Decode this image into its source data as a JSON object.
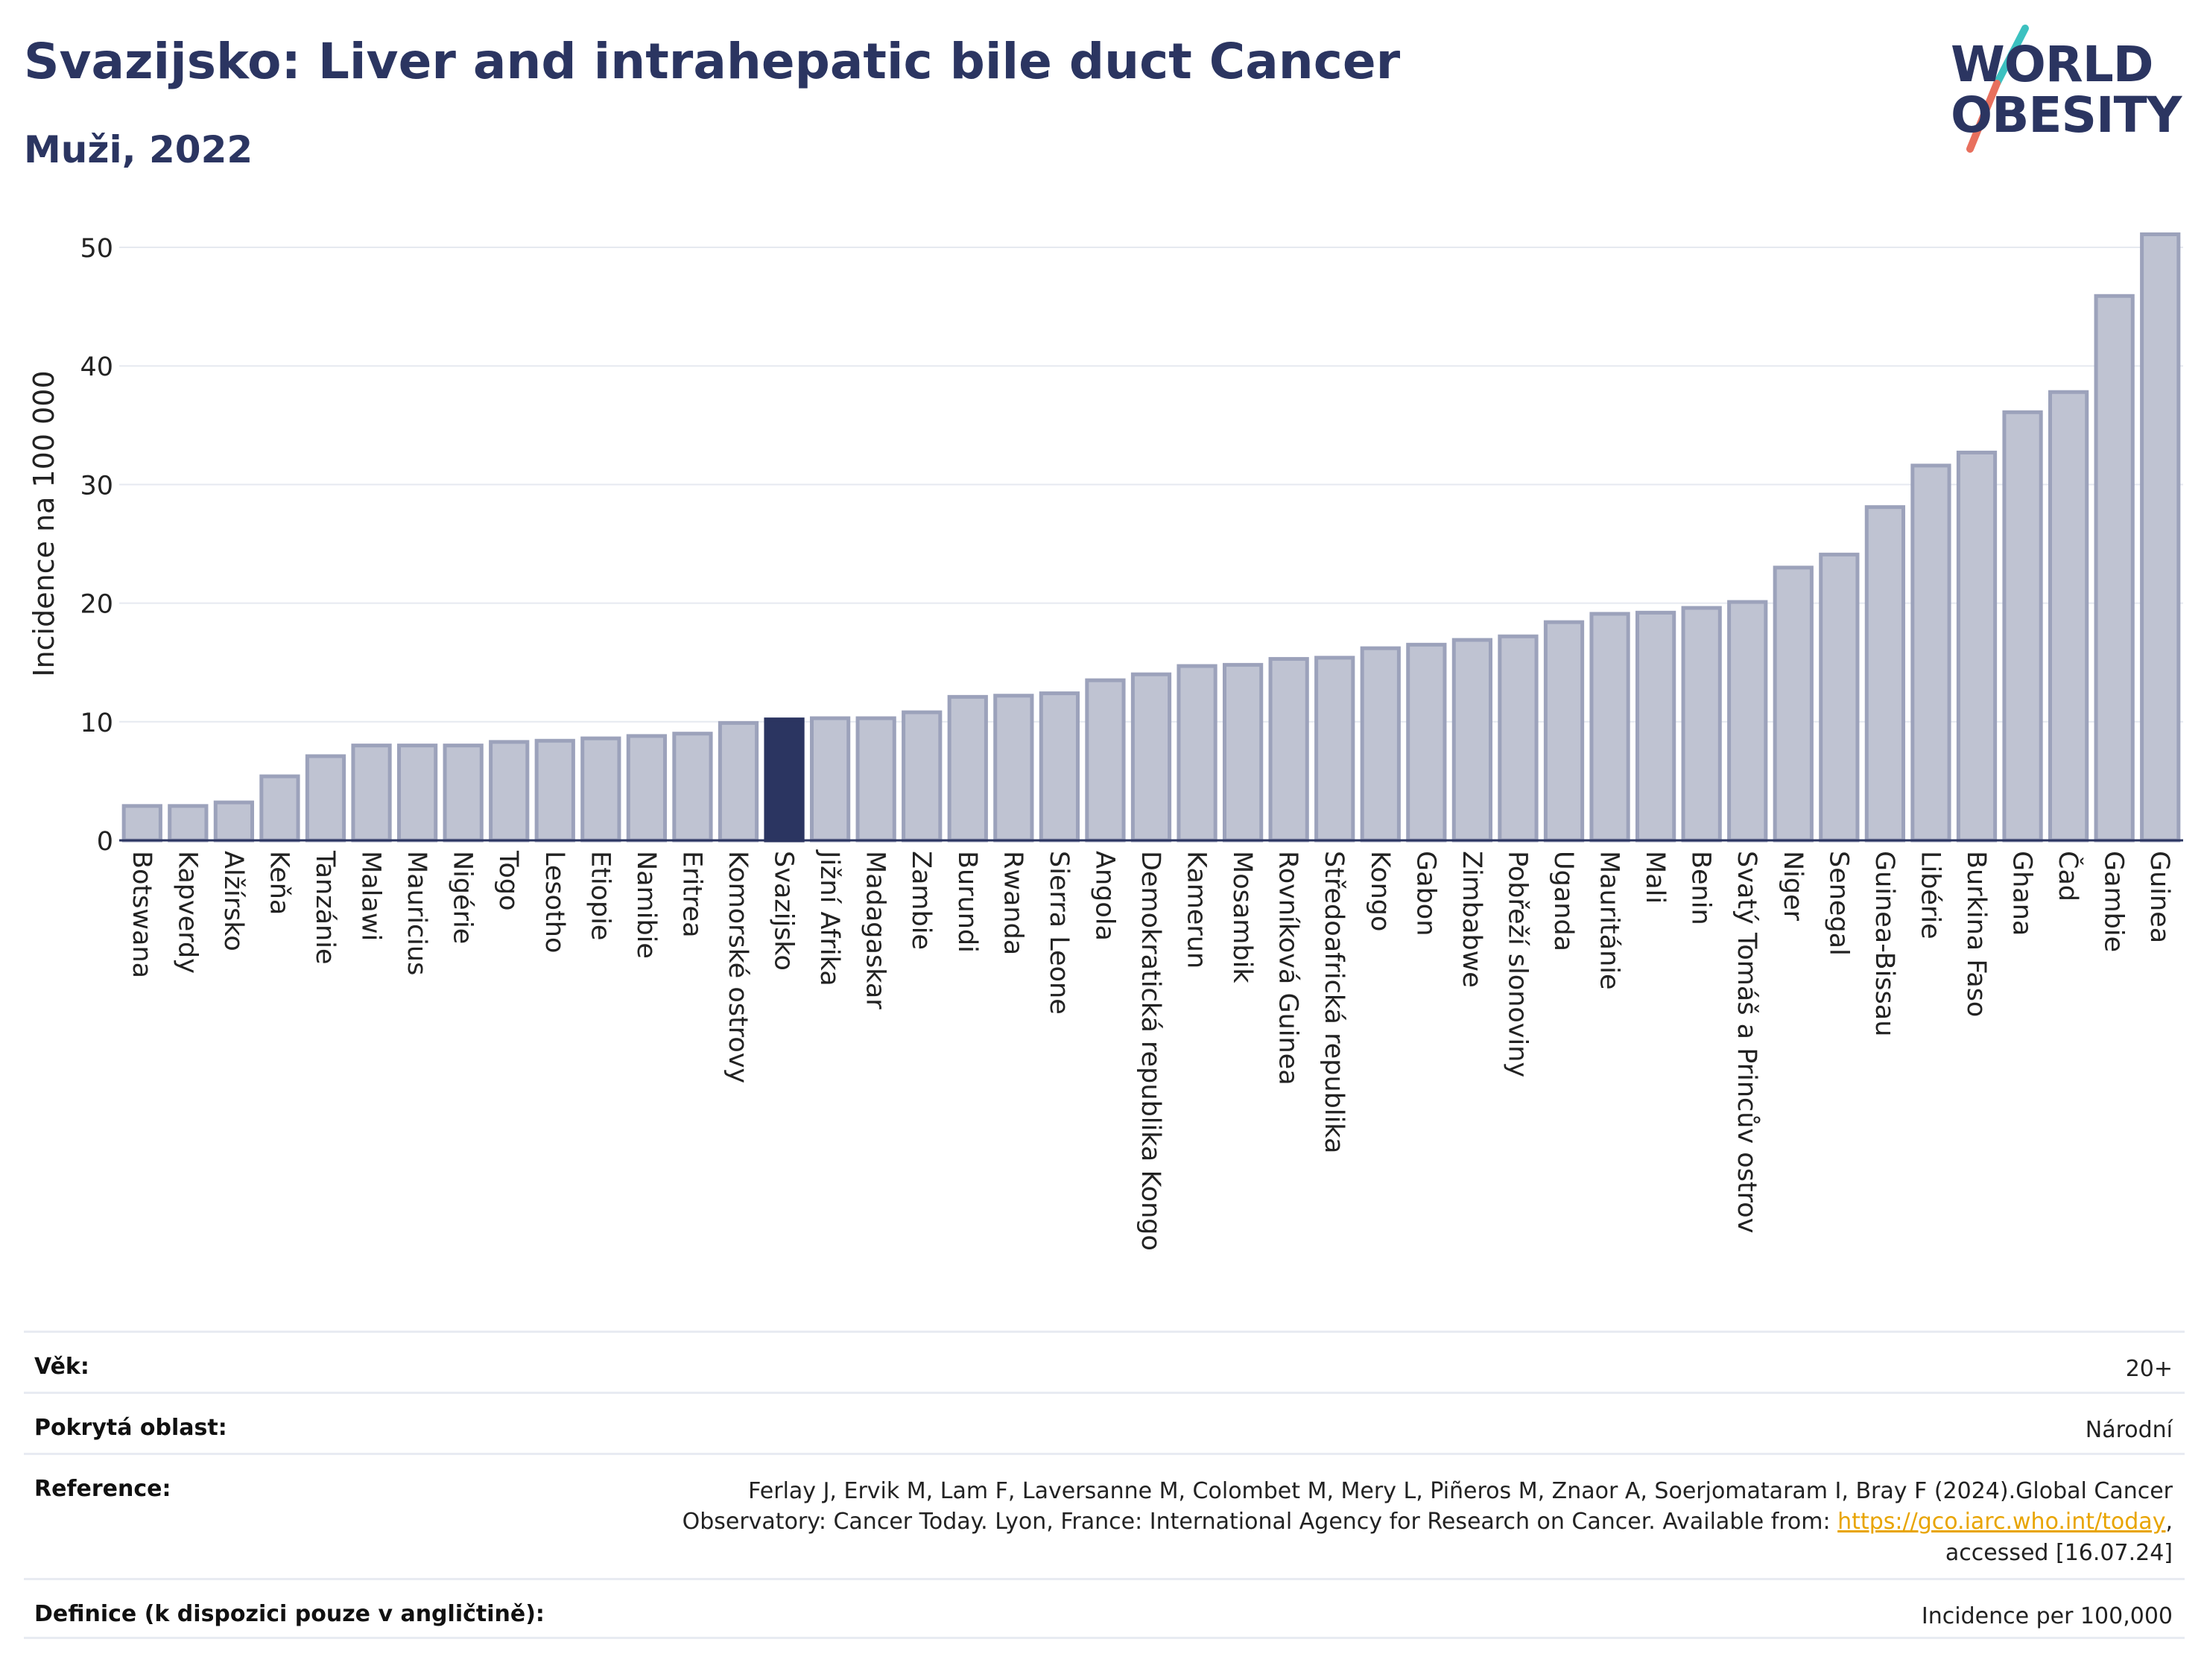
{
  "header": {
    "title": "Svazijsko: Liver and intrahepatic bile duct Cancer",
    "subtitle": "Muži, 2022"
  },
  "logo": {
    "line1": "WORLD",
    "line2": "OBESITY"
  },
  "colors": {
    "bar_fill": "#bfc3d2",
    "bar_stroke": "#9ca2bb",
    "highlight": "#2b3561",
    "text": "#2b3561",
    "grid": "#e6e9f0",
    "logo_teal": "#3cc1c0",
    "logo_coral": "#e8705e"
  },
  "chart_data": {
    "type": "bar",
    "ylabel": "Incidence na 100 000",
    "ylim": [
      0,
      53
    ],
    "yticks": [
      0,
      10,
      20,
      30,
      40,
      50
    ],
    "grid": true,
    "highlight": "Svazijsko",
    "categories": [
      "Botswana",
      "Kapverdy",
      "Alžírsko",
      "Keňa",
      "Tanzánie",
      "Malawi",
      "Mauricius",
      "Nigérie",
      "Togo",
      "Lesotho",
      "Etiopie",
      "Namibie",
      "Eritrea",
      "Komorské ostrovy",
      "Svazijsko",
      "Jižní Afrika",
      "Madagaskar",
      "Zambie",
      "Burundi",
      "Rwanda",
      "Sierra Leone",
      "Angola",
      "Demokratická republika Kongo",
      "Kamerun",
      "Mosambik",
      "Rovníková Guinea",
      "Středoafrická republika",
      "Kongo",
      "Gabon",
      "Zimbabwe",
      "Pobřeží slonoviny",
      "Uganda",
      "Mauritánie",
      "Mali",
      "Benin",
      "Svatý Tomáš a Princův ostrov",
      "Niger",
      "Senegal",
      "Guinea-Bissau",
      "Libérie",
      "Burkina Faso",
      "Ghana",
      "Čad",
      "Gambie",
      "Guinea"
    ],
    "values": [
      2.9,
      2.9,
      3.2,
      5.4,
      7.1,
      8.0,
      8.0,
      8.0,
      8.3,
      8.4,
      8.6,
      8.8,
      9.0,
      9.9,
      10.2,
      10.3,
      10.3,
      10.8,
      12.1,
      12.2,
      12.4,
      13.5,
      14.0,
      14.7,
      14.8,
      15.3,
      15.4,
      16.2,
      16.5,
      16.9,
      17.2,
      18.4,
      19.1,
      19.2,
      19.6,
      20.1,
      23.0,
      24.1,
      28.1,
      31.6,
      32.7,
      36.1,
      37.8,
      45.9,
      51.1
    ]
  },
  "meta": {
    "rows": [
      {
        "label": "Věk:",
        "value": "20+"
      },
      {
        "label": "Pokrytá oblast:",
        "value": "Národní"
      },
      {
        "label": "Reference:",
        "value_line1": "Ferlay J, Ervik M, Lam F, Laversanne M, Colombet M, Mery L, Piñeros M, Znaor A, Soerjomataram I, Bray F (2024).Global Cancer",
        "value_line2_prefix": "Observatory: Cancer Today. Lyon, France: International Agency for Research on Cancer. Available from: ",
        "link_text": "https://gco.iarc.who.int/today",
        "value_line2_suffix": ",",
        "value_line3": "accessed [16.07.24]"
      },
      {
        "label": "Definice (k dispozici pouze v angličtině):",
        "value": "Incidence per 100,000"
      }
    ]
  }
}
